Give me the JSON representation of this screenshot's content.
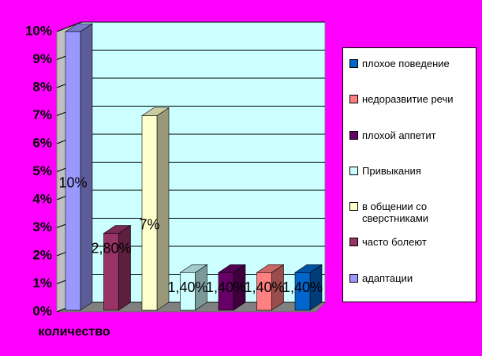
{
  "chart_data": {
    "type": "bar3d",
    "categories": [
      "количество"
    ],
    "series": [
      {
        "name": "адаптации",
        "color": "#9999ff",
        "values": [
          10
        ],
        "value_labels": [
          "10%"
        ]
      },
      {
        "name": "часто болеют",
        "color": "#993366",
        "values": [
          2.8
        ],
        "value_labels": [
          "2,80%"
        ]
      },
      {
        "name": "в общении со сверстниками",
        "color": "#ffffcc",
        "values": [
          7
        ],
        "value_labels": [
          "7%"
        ]
      },
      {
        "name": "Привыкания",
        "color": "#ccffff",
        "values": [
          1.4
        ],
        "value_labels": [
          "1,40%"
        ]
      },
      {
        "name": "плохой аппетит",
        "color": "#660066",
        "values": [
          1.4
        ],
        "value_labels": [
          "1,40%"
        ]
      },
      {
        "name": "недоразвитие речи",
        "color": "#ff8080",
        "values": [
          1.4
        ],
        "value_labels": [
          "1,40%"
        ]
      },
      {
        "name": "плохое поведение",
        "color": "#0066cc",
        "values": [
          1.4
        ],
        "value_labels": [
          "1,40%"
        ]
      }
    ],
    "ylim": [
      0,
      10
    ],
    "yticks": [
      {
        "value": 0,
        "label": "0%"
      },
      {
        "value": 1,
        "label": "1%"
      },
      {
        "value": 2,
        "label": "2%"
      },
      {
        "value": 3,
        "label": "3%"
      },
      {
        "value": 4,
        "label": "4%"
      },
      {
        "value": 5,
        "label": "5%"
      },
      {
        "value": 6,
        "label": "6%"
      },
      {
        "value": 7,
        "label": "7%"
      },
      {
        "value": 8,
        "label": "8%"
      },
      {
        "value": 9,
        "label": "9%"
      },
      {
        "value": 10,
        "label": "10%"
      }
    ],
    "grid": true,
    "legend": "right"
  }
}
